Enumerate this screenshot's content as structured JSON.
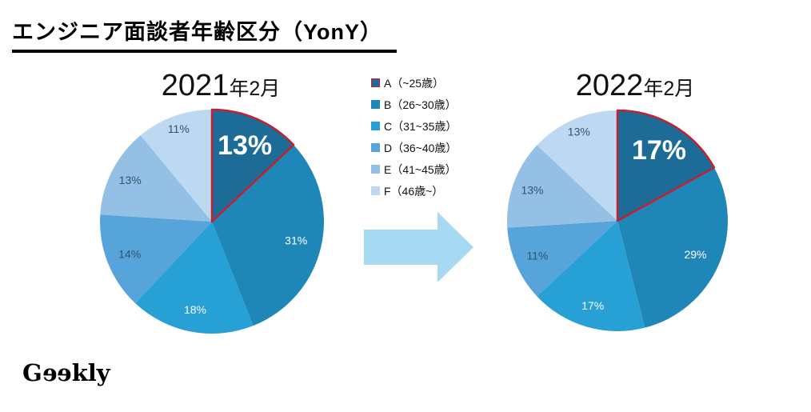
{
  "header": {
    "title": "エンジニア面談者年齢区分（YonY）"
  },
  "legend": {
    "items": [
      {
        "key": "A",
        "label": "A（~25歳）",
        "color": "#1c6c97",
        "border": "#c52030"
      },
      {
        "key": "B",
        "label": "B（26~30歳）",
        "color": "#1f86b8"
      },
      {
        "key": "C",
        "label": "C（31~35歳）",
        "color": "#27a0d5"
      },
      {
        "key": "D",
        "label": "D（36~40歳）",
        "color": "#56a4da"
      },
      {
        "key": "E",
        "label": "E（41~45歳）",
        "color": "#93c0e4"
      },
      {
        "key": "F",
        "label": "F（46歳~）",
        "color": "#bdd8f1"
      }
    ]
  },
  "chart_data": [
    {
      "type": "pie",
      "title_text": "2021年2月",
      "title": {
        "year": "2021",
        "suffix": "年2月"
      },
      "categories": [
        "A（~25歳）",
        "B（26~30歳）",
        "C（31~35歳）",
        "D（36~40歳）",
        "E（41~45歳）",
        "F（46歳~）"
      ],
      "values": [
        13,
        31,
        18,
        14,
        13,
        11
      ],
      "labels": [
        "13%",
        "31%",
        "18%",
        "14%",
        "13%",
        "11%"
      ],
      "highlight_index": 0,
      "start_angle_deg": 0,
      "direction": "clockwise"
    },
    {
      "type": "pie",
      "title_text": "2022年2月",
      "title": {
        "year": "2022",
        "suffix": "年2月"
      },
      "categories": [
        "A（~25歳）",
        "B（26~30歳）",
        "C（31~35歳）",
        "D（36~40歳）",
        "E（41~45歳）",
        "F（46歳~）"
      ],
      "values": [
        17,
        29,
        17,
        11,
        13,
        13
      ],
      "labels": [
        "17%",
        "29%",
        "17%",
        "11%",
        "13%",
        "13%"
      ],
      "highlight_index": 0,
      "start_angle_deg": 0,
      "direction": "clockwise"
    }
  ],
  "colors": {
    "slices": [
      "#1c6c97",
      "#1f86b8",
      "#27a0d5",
      "#56a4da",
      "#93c0e4",
      "#bdd8f1"
    ],
    "highlight_stroke": "#c52030",
    "label_light": "#ffffff",
    "label_dark": "#33536e",
    "arrow": "#a8d9f2",
    "title_underline": "#000000"
  },
  "arrow": {
    "meaning": "year-over-year transition",
    "direction": "right"
  },
  "logo": {
    "prefix": "G",
    "e1": "e",
    "e2": "e",
    "suffix": "kly"
  }
}
